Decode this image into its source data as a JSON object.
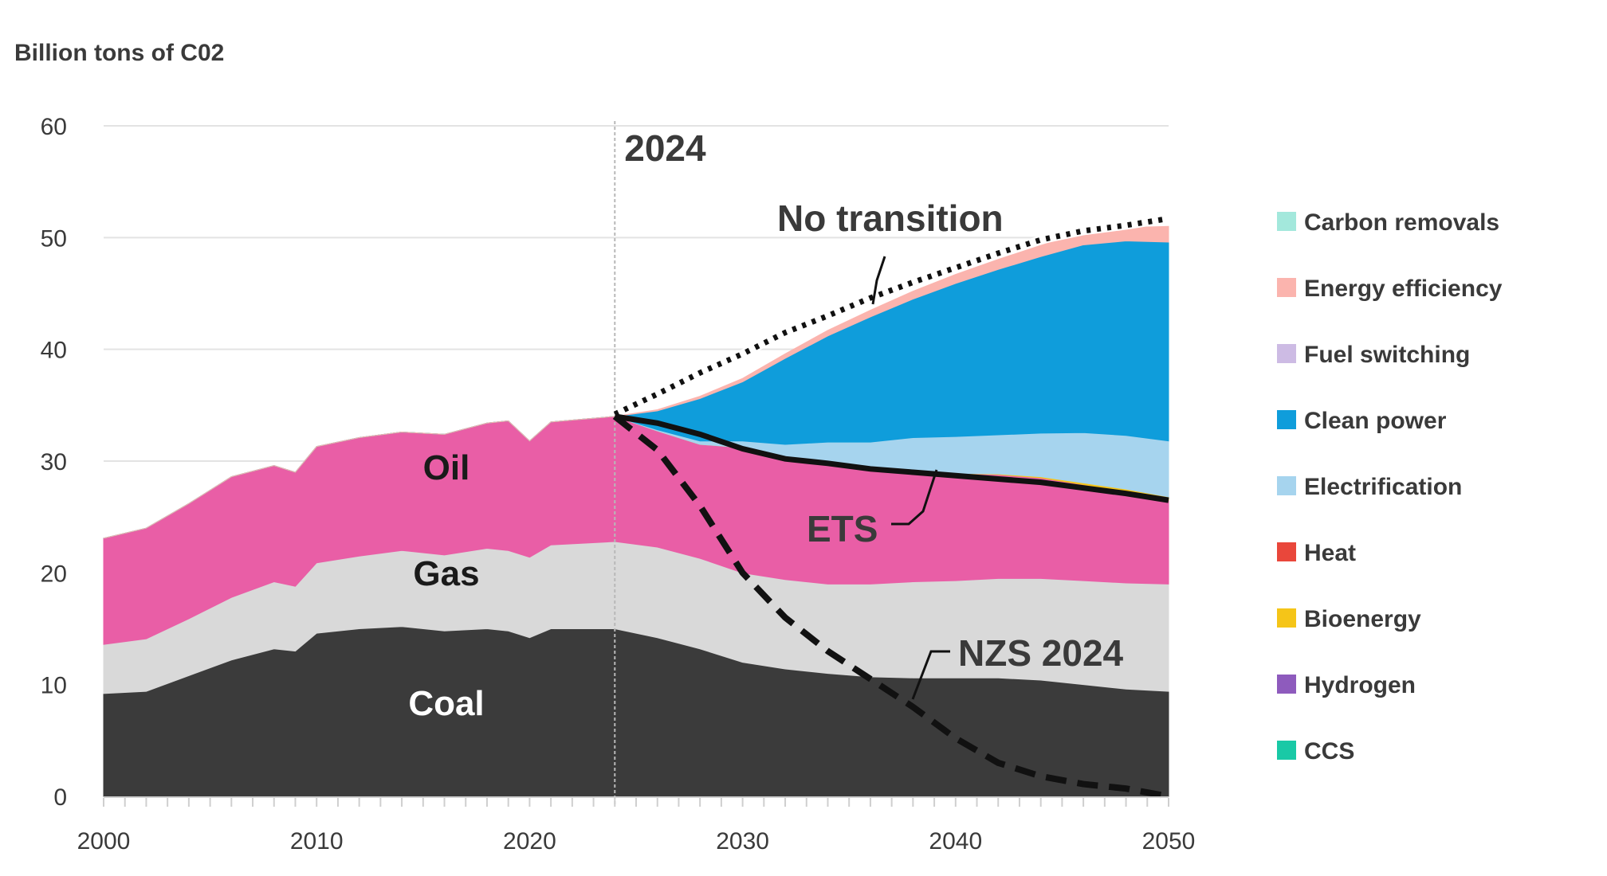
{
  "chart_data": {
    "type": "area",
    "ylabel": "Billion tons of C02",
    "ylim": [
      0,
      60
    ],
    "xlim": [
      2000,
      2050
    ],
    "yticks": [
      0,
      10,
      20,
      30,
      40,
      50,
      60
    ],
    "xticks": [
      2000,
      2010,
      2020,
      2030,
      2040,
      2050
    ],
    "divider": {
      "year": 2024,
      "label": "2024"
    },
    "x": [
      2000,
      2002,
      2004,
      2006,
      2008,
      2009,
      2010,
      2012,
      2014,
      2016,
      2018,
      2019,
      2020,
      2021,
      2024,
      2026,
      2028,
      2030,
      2032,
      2034,
      2036,
      2038,
      2040,
      2042,
      2044,
      2046,
      2048,
      2050
    ],
    "series": [
      {
        "name": "Coal",
        "color": "#3b3b3b",
        "label": "Coal",
        "values": [
          9.2,
          9.4,
          10.8,
          12.2,
          13.2,
          13.0,
          14.6,
          15.0,
          15.2,
          14.8,
          15.0,
          14.8,
          14.2,
          15.0,
          15.0,
          14.2,
          13.2,
          12.0,
          11.4,
          11.0,
          10.7,
          10.6,
          10.6,
          10.6,
          10.4,
          10.0,
          9.6,
          9.4
        ]
      },
      {
        "name": "Gas",
        "color": "#d9d9d9",
        "label": "Gas",
        "values": [
          4.4,
          4.7,
          5.1,
          5.6,
          6.0,
          5.8,
          6.3,
          6.5,
          6.8,
          6.8,
          7.2,
          7.2,
          7.2,
          7.5,
          7.8,
          8.1,
          8.1,
          8.0,
          8.0,
          8.0,
          8.3,
          8.6,
          8.7,
          8.9,
          9.1,
          9.3,
          9.5,
          9.6
        ]
      },
      {
        "name": "Oil",
        "color": "#e95ea6",
        "label": "Oil",
        "values": [
          9.5,
          9.9,
          10.3,
          10.8,
          10.4,
          10.2,
          10.4,
          10.6,
          10.6,
          10.8,
          11.2,
          11.6,
          10.4,
          11.0,
          11.2,
          10.4,
          10.2,
          11.2,
          10.8,
          10.6,
          10.2,
          9.9,
          9.6,
          9.3,
          9.0,
          8.6,
          8.2,
          7.5
        ]
      },
      {
        "name": "Bioenergy",
        "color": "#f5c518",
        "label": "",
        "values": [
          0,
          0,
          0,
          0,
          0,
          0,
          0,
          0,
          0,
          0,
          0,
          0,
          0,
          0,
          0,
          0,
          0,
          0,
          0,
          0,
          0,
          0,
          0,
          0.05,
          0.1,
          0.15,
          0.2,
          0.3
        ]
      },
      {
        "name": "Electrification",
        "color": "#a6d4ee",
        "label": "",
        "values": [
          0,
          0,
          0,
          0,
          0,
          0,
          0,
          0,
          0,
          0,
          0,
          0,
          0,
          0,
          0,
          0.1,
          0.3,
          0.6,
          1.3,
          2.1,
          2.5,
          3.0,
          3.3,
          3.5,
          3.9,
          4.5,
          4.8,
          5.0
        ]
      },
      {
        "name": "Clean power",
        "color": "#0f9ddb",
        "label": "",
        "values": [
          0,
          0,
          0,
          0,
          0,
          0,
          0,
          0,
          0,
          0,
          0,
          0,
          0,
          0,
          0,
          1.7,
          3.8,
          5.3,
          7.7,
          9.5,
          11.2,
          12.4,
          13.7,
          14.8,
          15.8,
          16.8,
          17.4,
          17.8
        ]
      },
      {
        "name": "Energy efficiency",
        "color": "#fbb4ae",
        "label": "",
        "values": [
          0,
          0,
          0,
          0,
          0,
          0,
          0,
          0,
          0,
          0,
          0,
          0,
          0,
          0,
          0,
          0.1,
          0.2,
          0.3,
          0.4,
          0.5,
          0.6,
          0.7,
          0.8,
          0.9,
          1.0,
          1.1,
          1.2,
          1.4
        ]
      }
    ],
    "lines": [
      {
        "name": "No transition",
        "style": "dotted",
        "x": [
          2024,
          2026,
          2028,
          2030,
          2032,
          2034,
          2036,
          2038,
          2040,
          2042,
          2044,
          2046,
          2048,
          2050
        ],
        "values": [
          34.2,
          36.0,
          37.9,
          39.6,
          41.5,
          43.0,
          44.6,
          46.0,
          47.3,
          48.6,
          49.8,
          50.6,
          51.1,
          51.7
        ]
      },
      {
        "name": "ETS",
        "style": "solid",
        "x": [
          2024,
          2026,
          2028,
          2030,
          2032,
          2034,
          2036,
          2038,
          2040,
          2042,
          2044,
          2046,
          2048,
          2050
        ],
        "values": [
          34.0,
          33.4,
          32.4,
          31.1,
          30.2,
          29.8,
          29.3,
          29.0,
          28.7,
          28.4,
          28.1,
          27.6,
          27.1,
          26.5
        ]
      },
      {
        "name": "NZS 2024",
        "style": "dashed",
        "x": [
          2024,
          2026,
          2028,
          2030,
          2032,
          2034,
          2036,
          2038,
          2040,
          2042,
          2044,
          2046,
          2048,
          2050
        ],
        "values": [
          34.0,
          31.0,
          26.0,
          20.0,
          16.0,
          13.0,
          10.5,
          8.0,
          5.2,
          3.0,
          1.8,
          1.1,
          0.7,
          0.0
        ]
      }
    ],
    "annotations": [
      {
        "text": "No transition"
      },
      {
        "text": "ETS"
      },
      {
        "text": "NZS 2024"
      }
    ],
    "legend": [
      {
        "label": "Carbon removals",
        "color": "#a3e8dc"
      },
      {
        "label": "Energy efficiency",
        "color": "#fbb4ae"
      },
      {
        "label": "Fuel switching",
        "color": "#cdbbe4"
      },
      {
        "label": "Clean power",
        "color": "#0f9ddb"
      },
      {
        "label": "Electrification",
        "color": "#a6d4ee"
      },
      {
        "label": "Heat",
        "color": "#e9473b"
      },
      {
        "label": "Bioenergy",
        "color": "#f5c518"
      },
      {
        "label": "Hydrogen",
        "color": "#8e5bbd"
      },
      {
        "label": "CCS",
        "color": "#19c9a6"
      }
    ],
    "legend_position": "right"
  }
}
